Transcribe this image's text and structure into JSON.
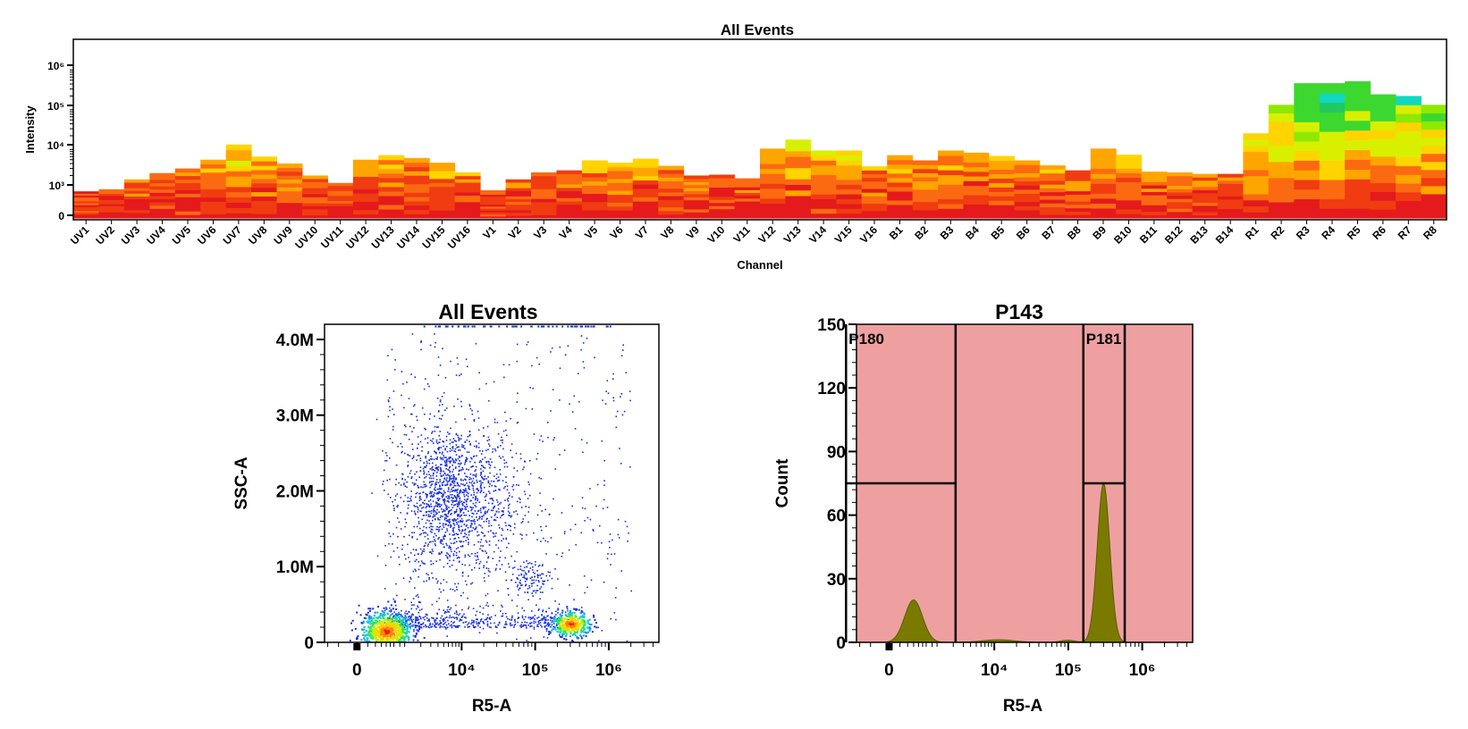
{
  "chart_data": [
    {
      "type": "heatmap",
      "title": "All Events",
      "xlabel": "Channel",
      "ylabel": "Intensity",
      "y_ticks": [
        "0",
        "10³",
        "10⁴",
        "10⁵",
        "10⁶"
      ],
      "y_scale": "log",
      "categories": [
        "UV1",
        "UV2",
        "UV3",
        "UV4",
        "UV5",
        "UV6",
        "UV7",
        "UV8",
        "UV9",
        "UV10",
        "UV11",
        "UV12",
        "UV13",
        "UV14",
        "UV15",
        "UV16",
        "V1",
        "V2",
        "V3",
        "V4",
        "V5",
        "V6",
        "V7",
        "V8",
        "V9",
        "V10",
        "V11",
        "V12",
        "V13",
        "V14",
        "V15",
        "V16",
        "B1",
        "B2",
        "B3",
        "B4",
        "B5",
        "B6",
        "B7",
        "B8",
        "B9",
        "B10",
        "B11",
        "B12",
        "B13",
        "B14",
        "R1",
        "R2",
        "R3",
        "R4",
        "R5",
        "R6",
        "R7",
        "R8"
      ],
      "top_values": [
        800,
        900,
        1600,
        2300,
        3000,
        5000,
        12000,
        6000,
        4000,
        2000,
        1300,
        5000,
        6500,
        5500,
        4200,
        2400,
        850,
        1600,
        2400,
        2700,
        4800,
        4200,
        5300,
        3500,
        2000,
        2100,
        1700,
        9500,
        16000,
        8500,
        8500,
        3400,
        6500,
        4800,
        8500,
        7500,
        6200,
        4800,
        3600,
        2700,
        9500,
        6700,
        2500,
        2400,
        2200,
        2200,
        23000,
        120000,
        420000,
        420000,
        470000,
        220000,
        200000,
        120000
      ],
      "grid": false,
      "legend": "none"
    },
    {
      "type": "scatter",
      "title": "All Events",
      "xlabel": "R5-A",
      "ylabel": "SSC-A",
      "x_scale": "biexponential",
      "x_ticks": [
        "0",
        "10⁴",
        "10⁵",
        "10⁶"
      ],
      "y_ticks": [
        "0",
        "1.0M",
        "2.0M",
        "3.0M",
        "4.0M"
      ],
      "ylim": [
        0,
        4200000
      ],
      "populations": [
        {
          "x": 400,
          "y": 150000,
          "density": "high"
        },
        {
          "x": 7000,
          "y": 1900000,
          "density": "medium"
        },
        {
          "x": 300000,
          "y": 250000,
          "density": "high"
        },
        {
          "x": 80000,
          "y": 850000,
          "density": "low"
        }
      ],
      "grid": false,
      "legend": "none"
    },
    {
      "type": "area",
      "title": "P143",
      "xlabel": "R5-A",
      "ylabel": "Count",
      "x_scale": "biexponential",
      "x_ticks": [
        "0",
        "10⁴",
        "10⁵",
        "10⁶"
      ],
      "y_ticks": [
        "0",
        "30",
        "60",
        "90",
        "120",
        "150"
      ],
      "ylim": [
        0,
        150
      ],
      "peaks": [
        {
          "x": 300,
          "count": 20
        },
        {
          "x": 300000,
          "count": 75
        }
      ],
      "gates": [
        {
          "label": "P180",
          "x_range": [
            -800,
            2200
          ]
        },
        {
          "label": "P181",
          "x_range": [
            160000,
            580000
          ]
        }
      ],
      "fill_color": "#7a7a00",
      "background_color": "#eea0a0",
      "grid": false,
      "legend": "none"
    }
  ]
}
